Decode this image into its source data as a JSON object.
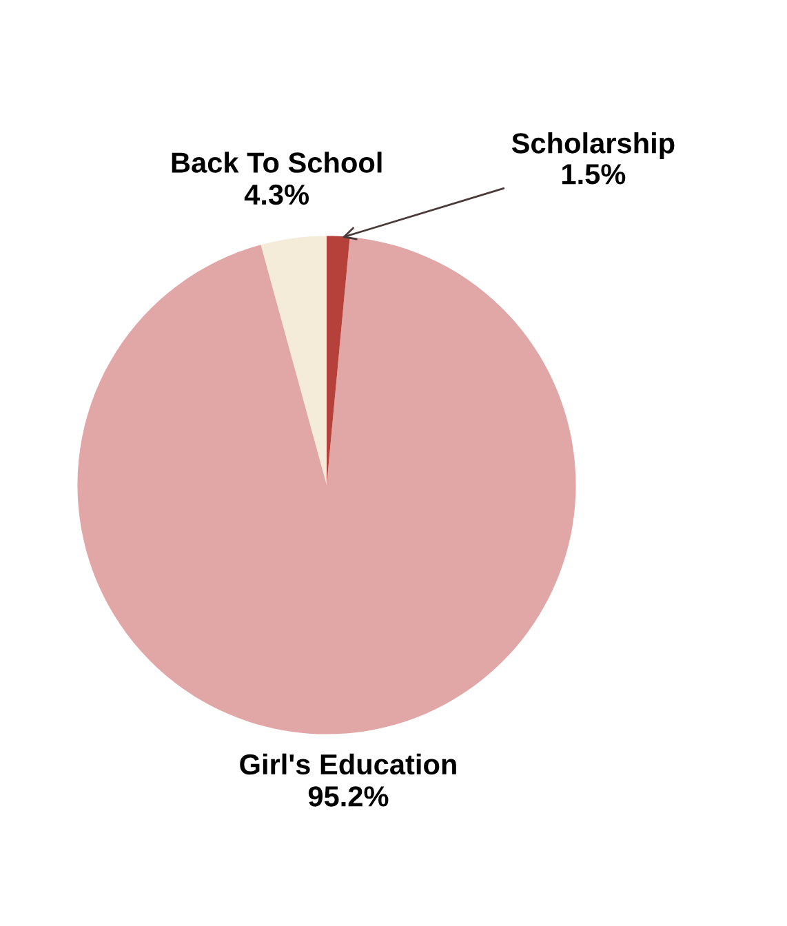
{
  "chart_data": {
    "type": "pie",
    "categories": [
      "Back To School",
      "Girl's Education",
      "Scholarship"
    ],
    "values": [
      4.3,
      95.2,
      1.5
    ],
    "value_labels": [
      "4.3%",
      "95.2%",
      "1.5%"
    ],
    "colors": [
      "#f5ebd9",
      "#e0a7a6",
      "#b5413a"
    ],
    "legend": false
  }
}
